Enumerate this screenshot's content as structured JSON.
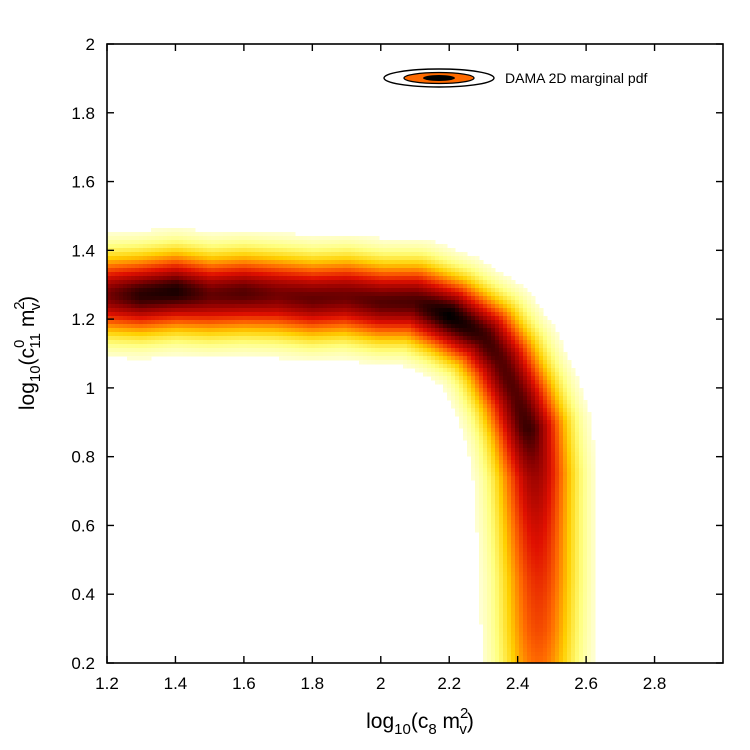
{
  "chart_data": {
    "type": "heatmap",
    "title": "",
    "xlabel": {
      "base": "log",
      "base_sub": "10",
      "open": "(c",
      "c_sub": "8",
      "m": " m",
      "m_sup": "2",
      "m_sub": "v",
      "close": ")"
    },
    "ylabel": {
      "base": "log",
      "base_sub": "10",
      "open": "(c",
      "c_sup": "0",
      "c_sub": "11",
      "m": " m",
      "m_sup": "2",
      "m_sub": "v",
      "close": ")"
    },
    "xlim": [
      1.2,
      3.0
    ],
    "ylim": [
      0.2,
      2.0
    ],
    "xticks": [
      1.2,
      1.4,
      1.6,
      1.8,
      2.0,
      2.2,
      2.4,
      2.6,
      2.8
    ],
    "xtick_labels": [
      "1.2",
      "1.4",
      "1.6",
      "1.8",
      "2",
      "2.2",
      "2.4",
      "2.6",
      "2.8"
    ],
    "yticks": [
      0.2,
      0.4,
      0.6,
      0.8,
      1.0,
      1.2,
      1.4,
      1.6,
      1.8,
      2.0
    ],
    "ytick_labels": [
      "0.2",
      "0.4",
      "0.6",
      "0.8",
      "1",
      "1.2",
      "1.4",
      "1.6",
      "1.8",
      "2"
    ],
    "grid": false,
    "legend": {
      "label": "DAMA 2D marginal pdf",
      "placement": "top-right"
    },
    "colormap": [
      "#ffffff",
      "#ffff80",
      "#ffd000",
      "#ff6a00",
      "#e01000",
      "#8a0000",
      "#000000"
    ],
    "density_ridge": [
      {
        "x": 1.2,
        "y": 1.27,
        "peak": 0.85
      },
      {
        "x": 1.3,
        "y": 1.27,
        "peak": 0.95
      },
      {
        "x": 1.4,
        "y": 1.28,
        "peak": 0.97
      },
      {
        "x": 1.5,
        "y": 1.27,
        "peak": 0.88
      },
      {
        "x": 1.6,
        "y": 1.275,
        "peak": 0.9
      },
      {
        "x": 1.7,
        "y": 1.27,
        "peak": 0.86
      },
      {
        "x": 1.8,
        "y": 1.26,
        "peak": 0.88
      },
      {
        "x": 1.9,
        "y": 1.265,
        "peak": 0.87
      },
      {
        "x": 2.0,
        "y": 1.25,
        "peak": 0.9
      },
      {
        "x": 2.1,
        "y": 1.25,
        "peak": 0.91
      },
      {
        "x": 2.2,
        "y": 1.21,
        "peak": 1.0
      },
      {
        "x": 2.3,
        "y": 1.15,
        "peak": 0.93
      },
      {
        "x": 2.35,
        "y": 1.08,
        "peak": 0.9
      },
      {
        "x": 2.4,
        "y": 0.97,
        "peak": 0.9
      },
      {
        "x": 2.43,
        "y": 0.88,
        "peak": 0.93
      },
      {
        "x": 2.45,
        "y": 0.75,
        "peak": 0.8
      },
      {
        "x": 2.455,
        "y": 0.6,
        "peak": 0.7
      },
      {
        "x": 2.46,
        "y": 0.45,
        "peak": 0.62
      },
      {
        "x": 2.46,
        "y": 0.3,
        "peak": 0.56
      },
      {
        "x": 2.46,
        "y": 0.2,
        "peak": 0.5
      }
    ]
  }
}
